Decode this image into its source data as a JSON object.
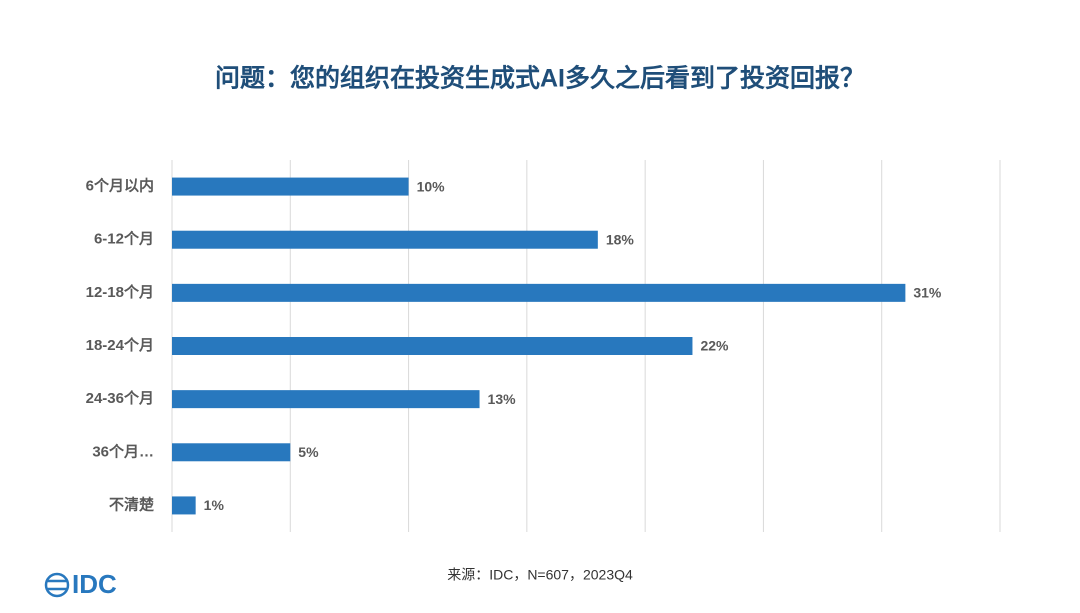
{
  "chart_data": {
    "type": "bar",
    "orientation": "horizontal",
    "title": "问题：您的组织在投资生成式AI多久之后看到了投资回报？",
    "categories": [
      "6个月以内",
      "6-12个月",
      "12-18个月",
      "18-24个月",
      "24-36个月",
      "36个月…",
      "不清楚"
    ],
    "values": [
      10,
      18,
      31,
      22,
      13,
      5,
      1
    ],
    "value_labels": [
      "10%",
      "18%",
      "31%",
      "22%",
      "13%",
      "5%",
      "1%"
    ],
    "color": "#2878be",
    "xlim": [
      0,
      35
    ],
    "xticks": [
      0,
      5,
      10,
      15,
      20,
      25,
      30,
      35
    ],
    "grid": true,
    "source": "来源：IDC，N=607，2023Q4",
    "logo": "IDC"
  }
}
